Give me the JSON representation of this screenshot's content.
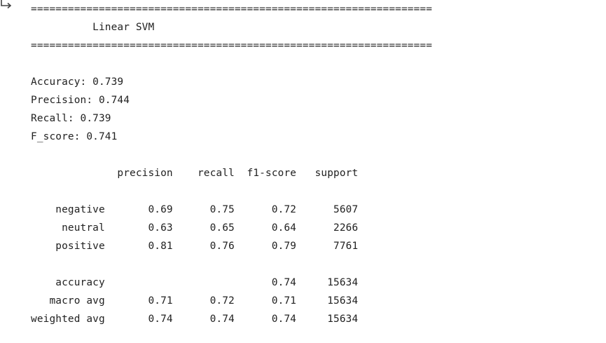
{
  "output": {
    "separator": "=================================================================",
    "title": "          Linear SVM",
    "metrics": [
      {
        "text": "Accuracy: 0.739"
      },
      {
        "text": "Precision: 0.744"
      },
      {
        "text": "Recall: 0.739"
      },
      {
        "text": "F_score: 0.741"
      }
    ],
    "report": {
      "header": "              precision    recall  f1-score   support",
      "class_rows": [
        {
          "text": "    negative       0.69      0.75      0.72      5607"
        },
        {
          "text": "     neutral       0.63      0.65      0.64      2266"
        },
        {
          "text": "    positive       0.81      0.76      0.79      7761"
        }
      ],
      "summary_rows": [
        {
          "text": "    accuracy                           0.74     15634"
        },
        {
          "text": "   macro avg       0.71      0.72      0.71     15634"
        },
        {
          "text": "weighted avg       0.74      0.74      0.74     15634"
        }
      ]
    }
  },
  "icons": {
    "output_icon": "output-arrow-icon",
    "color": "#424242"
  }
}
